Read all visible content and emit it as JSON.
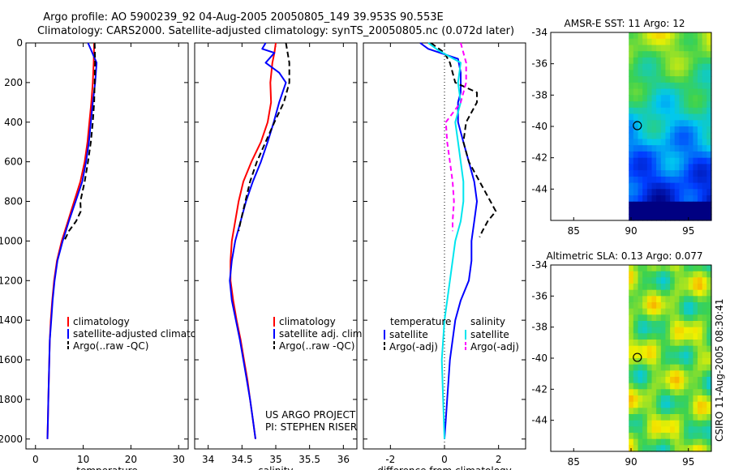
{
  "header": {
    "line1": "Argo profile: AO 5900239_92 04-Aug-2005 20050805_149 39.953S 90.553E",
    "line2": "Climatology: CARS2000. Satellite-adjusted climatology: synTS_20050805.nc (0.072d later)"
  },
  "side_label": "CSIRO 11-Aug-2005 08:30:41",
  "project": {
    "line1": "US ARGO PROJECT",
    "line2": "PI: STEPHEN RISER"
  },
  "colors": {
    "climatology": "#ff0000",
    "satellite": "#0000ff",
    "argo": "#000000",
    "sat_salinity": "#00e5ee",
    "argo_adj_salinity": "#ff00ff"
  },
  "chart_data": [
    {
      "type": "line",
      "xlabel": "temperature",
      "xlim": [
        -2,
        32
      ],
      "ylim": [
        2050,
        0
      ],
      "xticks": [
        "0",
        "10",
        "20",
        "30"
      ],
      "yticks": [
        "0",
        "200",
        "400",
        "600",
        "800",
        "1000",
        "1200",
        "1400",
        "1600",
        "1800",
        "2000"
      ],
      "legend": [
        "climatology",
        "satellite-adjusted climatology",
        "Argo(..raw -QC)"
      ],
      "series": [
        {
          "name": "climatology",
          "y": [
            0,
            100,
            200,
            300,
            400,
            500,
            600,
            700,
            800,
            900,
            1000,
            1100,
            1200,
            1300,
            1400,
            1500,
            1600,
            1700,
            1800,
            1900,
            2000
          ],
          "x": [
            12.3,
            12.2,
            12.0,
            11.7,
            11.3,
            10.9,
            10.3,
            9.4,
            8.1,
            6.8,
            5.5,
            4.5,
            3.9,
            3.5,
            3.2,
            3.0,
            2.9,
            2.8,
            2.7,
            2.6,
            2.5
          ]
        },
        {
          "name": "satellite-adjusted climatology",
          "y": [
            0,
            100,
            200,
            300,
            400,
            500,
            600,
            700,
            800,
            900,
            1000,
            1100,
            1200,
            1300,
            1400,
            1500,
            1600,
            1700,
            1800,
            1900,
            2000
          ],
          "x": [
            11.0,
            12.8,
            12.5,
            12.0,
            11.6,
            11.2,
            10.6,
            9.8,
            8.4,
            7.0,
            5.7,
            4.6,
            4.0,
            3.6,
            3.3,
            3.0,
            2.9,
            2.8,
            2.7,
            2.6,
            2.5
          ]
        },
        {
          "name": "Argo(..raw -QC)",
          "y": [
            0,
            100,
            200,
            300,
            400,
            500,
            600,
            700,
            800,
            850,
            900,
            950,
            1000
          ],
          "x": [
            12.4,
            12.5,
            12.4,
            12.3,
            12.0,
            11.6,
            11.0,
            10.3,
            9.4,
            9.5,
            8.5,
            7.0,
            6.0
          ]
        }
      ]
    },
    {
      "type": "line",
      "xlabel": "salinity",
      "xlim": [
        33.8,
        36.2
      ],
      "ylim": [
        2050,
        0
      ],
      "xticks": [
        "34",
        "34.5",
        "35",
        "35.5",
        "36"
      ],
      "legend": [
        "climatology",
        "satellite adj. clim.",
        "Argo(..raw -QC)"
      ],
      "series": [
        {
          "name": "climatology",
          "y": [
            0,
            50,
            100,
            200,
            300,
            400,
            500,
            600,
            700,
            800,
            900,
            1000,
            1100,
            1200,
            1300,
            1400,
            1500,
            1600,
            1700,
            1800,
            1900,
            2000
          ],
          "x": [
            35.0,
            34.98,
            34.95,
            34.92,
            34.93,
            34.88,
            34.78,
            34.64,
            34.52,
            34.45,
            34.4,
            34.35,
            34.33,
            34.33,
            34.37,
            34.42,
            34.48,
            34.53,
            34.58,
            34.62,
            34.66,
            34.7
          ]
        },
        {
          "name": "satellite adj. clim.",
          "y": [
            0,
            30,
            50,
            100,
            150,
            200,
            300,
            400,
            500,
            600,
            700,
            800,
            900,
            1000,
            1100,
            1200,
            1300,
            1400,
            1500,
            1600,
            1700,
            1800,
            1900,
            2000
          ],
          "x": [
            34.85,
            34.8,
            34.98,
            34.85,
            35.05,
            35.15,
            35.05,
            34.97,
            34.88,
            34.78,
            34.66,
            34.56,
            34.48,
            34.4,
            34.35,
            34.32,
            34.35,
            34.41,
            34.47,
            34.52,
            34.57,
            34.62,
            34.66,
            34.7
          ]
        },
        {
          "name": "Argo(..raw -QC)",
          "y": [
            0,
            100,
            200,
            300,
            400,
            500,
            600,
            700,
            800,
            900,
            950
          ],
          "x": [
            35.15,
            35.2,
            35.2,
            35.12,
            34.98,
            34.85,
            34.72,
            34.62,
            34.55,
            34.48,
            34.45
          ]
        }
      ]
    },
    {
      "type": "line",
      "xlabel": "difference from climatology",
      "xlim": [
        -3,
        3
      ],
      "ylim": [
        2050,
        0
      ],
      "xticks": [
        "-2",
        "0",
        "2"
      ],
      "legend_headings": [
        "temperature",
        "salinity"
      ],
      "legend": [
        "satellite",
        "Argo(-adj)",
        "satellite",
        "Argo(-adj)"
      ],
      "series": [
        {
          "name": "temperature satellite",
          "y": [
            0,
            30,
            80,
            150,
            250,
            300,
            400,
            500,
            600,
            700,
            800,
            900,
            1000,
            1100,
            1200,
            1300,
            1400,
            1600,
            1800,
            2000
          ],
          "x": [
            -0.9,
            -0.6,
            0.5,
            0.6,
            0.6,
            0.5,
            0.5,
            0.7,
            0.9,
            1.1,
            1.2,
            1.1,
            1.0,
            1.0,
            0.9,
            0.6,
            0.4,
            0.2,
            0.1,
            0.0
          ]
        },
        {
          "name": "temperature Argo(-adj)",
          "y": [
            0,
            50,
            100,
            200,
            250,
            300,
            400,
            500,
            600,
            700,
            800,
            850,
            900,
            950,
            980
          ],
          "x": [
            -0.5,
            0.0,
            0.2,
            0.4,
            1.2,
            1.2,
            0.8,
            0.7,
            0.9,
            1.3,
            1.7,
            1.9,
            1.6,
            1.4,
            1.3
          ]
        },
        {
          "name": "salinity satellite",
          "y": [
            0,
            40,
            100,
            200,
            300,
            400,
            500,
            600,
            700,
            800,
            900,
            1000,
            1200,
            1400,
            1600,
            1800,
            2000
          ],
          "x": [
            -0.6,
            -0.2,
            0.6,
            0.5,
            0.6,
            0.4,
            0.5,
            0.6,
            0.7,
            0.7,
            0.6,
            0.4,
            0.2,
            0.0,
            -0.1,
            -0.05,
            0.0
          ]
        },
        {
          "name": "salinity Argo(-adj)",
          "y": [
            0,
            100,
            200,
            300,
            400,
            500,
            600,
            700,
            800,
            900,
            950
          ],
          "x": [
            0.6,
            0.8,
            0.8,
            0.6,
            0.05,
            0.1,
            0.2,
            0.3,
            0.35,
            0.3,
            0.3
          ]
        }
      ]
    },
    {
      "type": "heatmap",
      "title": "AMSR-E SST: 11 Argo: 12",
      "xlim": [
        83,
        97
      ],
      "ylim": [
        -46,
        -34
      ],
      "xticks": [
        "85",
        "90",
        "95"
      ],
      "yticks": [
        "-34",
        "-36",
        "-38",
        "-40",
        "-42",
        "-44"
      ],
      "marker": [
        90.55,
        -39.95
      ]
    },
    {
      "type": "heatmap",
      "title": "Altimetric SLA: 0.13 Argo: 0.077",
      "xlim": [
        83,
        97
      ],
      "ylim": [
        -46,
        -34
      ],
      "xticks": [
        "85",
        "90",
        "95"
      ],
      "yticks": [
        "-34",
        "-36",
        "-38",
        "-40",
        "-42",
        "-44"
      ],
      "marker": [
        90.55,
        -39.95
      ]
    }
  ]
}
